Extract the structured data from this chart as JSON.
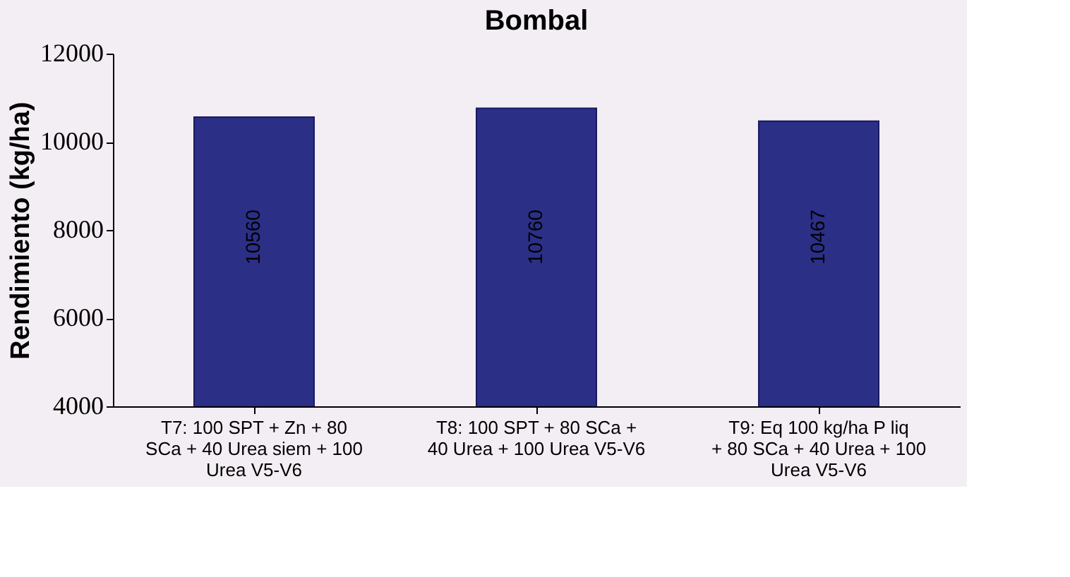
{
  "chart_data": {
    "type": "bar",
    "title": "Bombal",
    "ylabel": "Rendimiento (kg/ha)",
    "categories": [
      "T7: 100 SPT + Zn + 80 SCa + 40 Urea siem + 100 Urea V5-V6",
      "T8: 100 SPT + 80 SCa + 40 Urea + 100 Urea V5-V6",
      "T9:  Eq 100 kg/ha P liq + 80 SCa + 40 Urea + 100 Urea V5-V6"
    ],
    "values": [
      10560,
      10760,
      10467
    ],
    "color": "#2b2f86",
    "ylim": [
      4000,
      12000
    ],
    "yticks": [
      4000,
      6000,
      8000,
      10000,
      12000
    ],
    "data_labels": true,
    "grid": false
  }
}
